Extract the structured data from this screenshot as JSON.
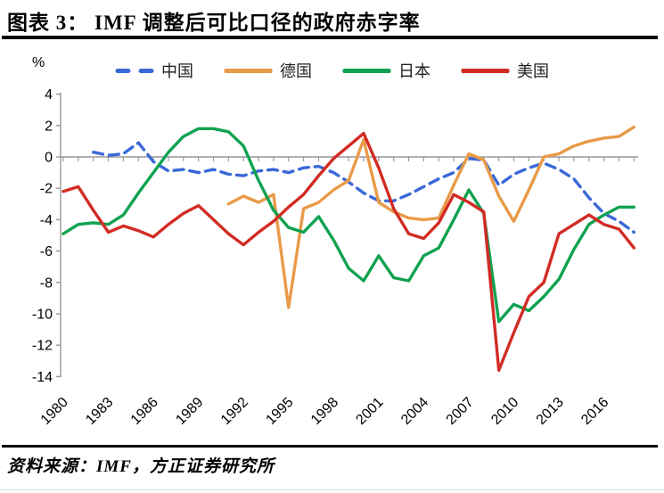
{
  "page": {
    "title": "图表 3： IMF 调整后可比口径的政府赤字率",
    "unit_label": "%",
    "source": "资料来源：IMF，方正证券研究所"
  },
  "chart_data": {
    "type": "line",
    "title": "IMF 调整后可比口径的政府赤字率",
    "xlabel": "",
    "ylabel": "%",
    "ylim": [
      -14,
      4
    ],
    "yticks": [
      4,
      2,
      0,
      -2,
      -4,
      -6,
      -8,
      -10,
      -12,
      -14
    ],
    "x_range": [
      1980,
      2018
    ],
    "xtick_labels": [
      "1980",
      "1983",
      "1986",
      "1989",
      "1992",
      "1995",
      "1998",
      "2001",
      "2004",
      "2007",
      "2010",
      "2013",
      "2016"
    ],
    "grid": false,
    "legend_position": "top",
    "axis_color": "#999999",
    "series": [
      {
        "name": "中国",
        "color": "#3A68D8",
        "style": "dashed",
        "start_year": 1982,
        "values": [
          0.3,
          0.1,
          0.2,
          0.9,
          -0.3,
          -0.9,
          -0.8,
          -1.0,
          -0.8,
          -1.1,
          -1.2,
          -0.9,
          -0.8,
          -1.0,
          -0.7,
          -0.6,
          -1.0,
          -1.6,
          -2.3,
          -2.8,
          -2.8,
          -2.4,
          -1.9,
          -1.4,
          -1.0,
          -0.1,
          -0.2,
          -1.8,
          -1.1,
          -0.7,
          -0.4,
          -0.8,
          -1.4,
          -2.6,
          -3.6,
          -4.1,
          -4.8
        ]
      },
      {
        "name": "德国",
        "color": "#E99A48",
        "style": "solid",
        "start_year": 1991,
        "values": [
          -3.0,
          -2.5,
          -2.9,
          -2.4,
          -9.6,
          -3.3,
          -2.9,
          -2.1,
          -1.5,
          1.1,
          -2.9,
          -3.5,
          -3.9,
          -4.0,
          -3.9,
          -1.8,
          0.2,
          -0.2,
          -2.5,
          -4.1,
          -2.1,
          0.0,
          0.2,
          0.7,
          1.0,
          1.2,
          1.3,
          1.9
        ]
      },
      {
        "name": "日本",
        "color": "#10A251",
        "style": "solid",
        "start_year": 1980,
        "values": [
          -4.9,
          -4.3,
          -4.2,
          -4.3,
          -3.7,
          -2.3,
          -1.0,
          0.3,
          1.3,
          1.8,
          1.8,
          1.6,
          0.7,
          -1.5,
          -3.4,
          -4.5,
          -4.8,
          -3.8,
          -5.3,
          -7.1,
          -7.9,
          -6.3,
          -7.7,
          -7.9,
          -6.3,
          -5.8,
          -4.0,
          -2.1,
          -3.6,
          -10.5,
          -9.4,
          -9.8,
          -8.9,
          -7.8,
          -5.9,
          -4.3,
          -3.7,
          -3.2,
          -3.2
        ]
      },
      {
        "name": "美国",
        "color": "#D22B25",
        "style": "solid",
        "start_year": 1980,
        "values": [
          -2.2,
          -1.9,
          -3.4,
          -4.8,
          -4.4,
          -4.7,
          -5.1,
          -4.3,
          -3.6,
          -3.1,
          -4.0,
          -4.9,
          -5.6,
          -4.8,
          -4.1,
          -3.2,
          -2.4,
          -1.2,
          -0.1,
          0.7,
          1.5,
          -0.7,
          -3.3,
          -4.9,
          -5.2,
          -4.2,
          -2.4,
          -2.9,
          -3.5,
          -13.6,
          -11.2,
          -8.9,
          -8.0,
          -4.9,
          -4.3,
          -3.7,
          -4.3,
          -4.6,
          -5.8
        ]
      }
    ]
  }
}
